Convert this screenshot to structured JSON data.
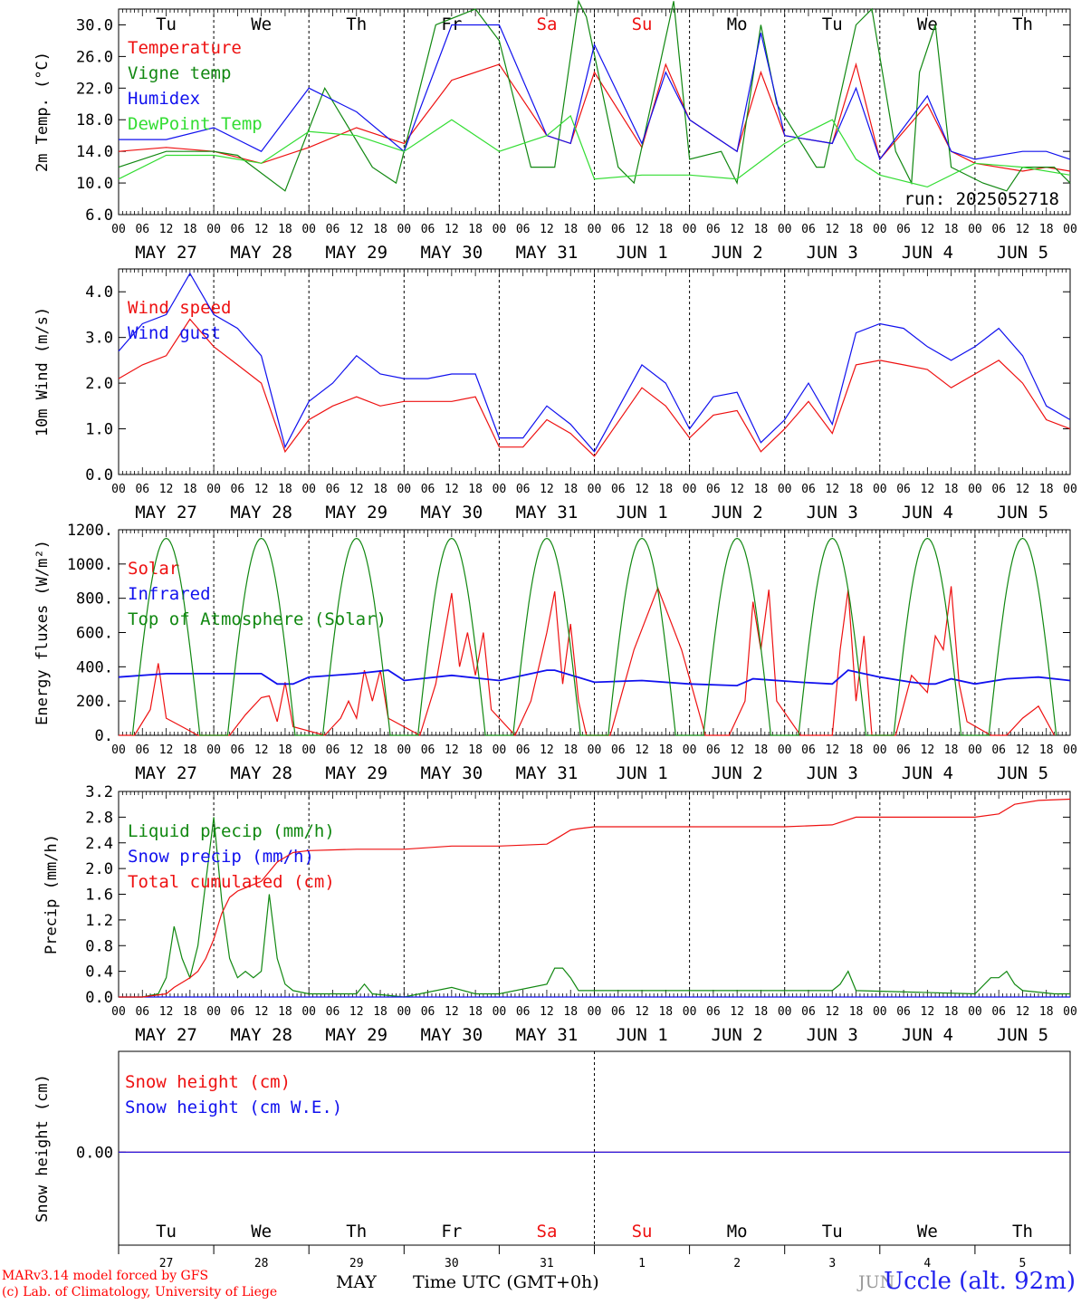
{
  "footer": {
    "model": "MARv3.14 model forced by GFS",
    "lab": "(c) Lab. of Climatology, University of Liege",
    "month_label": "MAY",
    "month_label_2": "JUN",
    "time_axis": "Time UTC (GMT+0h)",
    "station": "Uccle (alt. 92m)"
  },
  "colors": {
    "red": "#ee1111",
    "green": "#118811",
    "blue": "#1111ee",
    "lime": "#33dd33",
    "weekend": "#ee1111"
  },
  "days": [
    "Tu",
    "We",
    "Th",
    "Fr",
    "Sa",
    "Su",
    "Mo",
    "Tu",
    "We",
    "Th"
  ],
  "weekend_days": [
    "Sa",
    "Su"
  ],
  "day_numbers": [
    "27",
    "28",
    "29",
    "30",
    "31",
    "1",
    "2",
    "3",
    "4",
    "5"
  ],
  "date_labels": [
    "MAY 27",
    "MAY 28",
    "MAY 29",
    "MAY 30",
    "MAY 31",
    "JUN  1",
    "JUN  2",
    "JUN  3",
    "JUN  4",
    "JUN  5"
  ],
  "hour_ticks": [
    "00",
    "06",
    "12",
    "18"
  ],
  "hour_end": "00",
  "run_label": "run: 2025052718",
  "chart_data": [
    {
      "type": "line",
      "ylabel": "2m Temp. (°C)",
      "ylim": [
        6,
        32
      ],
      "yticks": [
        6,
        10,
        14,
        18,
        22,
        26,
        30
      ],
      "ytick_labels": [
        "6.0",
        "10.0",
        "14.0",
        "18.0",
        "22.0",
        "26.0",
        "30.0"
      ],
      "x_unit": "hours since 2025-05-27 00 UTC",
      "xlim": [
        0,
        240
      ],
      "series": [
        {
          "name": "Temperature",
          "color": "red",
          "x": [
            0,
            12,
            24,
            36,
            48,
            60,
            72,
            84,
            96,
            108,
            114,
            120,
            132,
            138,
            144,
            156,
            162,
            168,
            180,
            186,
            192,
            204,
            210,
            216,
            228,
            234,
            240
          ],
          "y": [
            14,
            14.5,
            14,
            12.5,
            14.5,
            17,
            15,
            23,
            25,
            16,
            15,
            24,
            14.5,
            25,
            18,
            14,
            24,
            16,
            15,
            25,
            13,
            20,
            14,
            12.5,
            11.5,
            12,
            11.5
          ]
        },
        {
          "name": "Vigne temp",
          "color": "green",
          "x": [
            0,
            12,
            24,
            30,
            42,
            52,
            64,
            70,
            80,
            90,
            96,
            104,
            110,
            116,
            118,
            126,
            130,
            140,
            144,
            152,
            156,
            162,
            166,
            176,
            178,
            186,
            190,
            196,
            200,
            202,
            206,
            210,
            218,
            224,
            228,
            236,
            240
          ],
          "y": [
            12,
            14,
            14,
            13.5,
            9,
            22,
            12,
            10,
            30,
            32,
            28,
            12,
            12,
            33,
            31,
            12,
            10,
            33,
            13,
            14,
            10,
            30,
            20,
            12,
            12,
            30,
            32,
            14,
            10,
            24,
            30,
            12,
            10,
            9,
            12,
            12,
            10
          ]
        },
        {
          "name": "Humidex",
          "color": "blue",
          "x": [
            0,
            12,
            24,
            30,
            36,
            48,
            60,
            72,
            84,
            96,
            108,
            114,
            120,
            132,
            138,
            144,
            156,
            162,
            168,
            180,
            186,
            192,
            204,
            210,
            216,
            228,
            234,
            240
          ],
          "y": [
            15.5,
            15.5,
            17,
            15.5,
            14,
            22,
            19,
            14,
            30,
            30,
            16,
            15,
            27.5,
            15,
            24,
            18,
            14,
            29,
            16,
            15,
            22,
            13,
            21,
            14,
            13,
            14,
            14,
            13
          ]
        },
        {
          "name": "DewPoint Temp",
          "color": "lime",
          "x": [
            0,
            12,
            24,
            36,
            48,
            60,
            72,
            84,
            96,
            108,
            114,
            120,
            132,
            144,
            156,
            168,
            180,
            186,
            192,
            204,
            216,
            228,
            240
          ],
          "y": [
            10.5,
            13.5,
            13.5,
            12.5,
            16.5,
            16,
            14,
            18,
            14,
            16,
            18.5,
            10.5,
            11,
            11,
            10.5,
            15,
            18,
            13,
            11,
            9.5,
            12.5,
            12,
            11
          ]
        }
      ]
    },
    {
      "type": "line",
      "ylabel": "10m Wind (m/s)",
      "ylim": [
        0,
        4.5
      ],
      "yticks": [
        0,
        1,
        2,
        3,
        4
      ],
      "ytick_labels": [
        "0.0",
        "1.0",
        "2.0",
        "3.0",
        "4.0"
      ],
      "xlim": [
        0,
        240
      ],
      "series": [
        {
          "name": "Wind speed",
          "color": "red",
          "x": [
            0,
            6,
            12,
            18,
            24,
            30,
            36,
            42,
            48,
            54,
            60,
            66,
            72,
            78,
            84,
            90,
            96,
            102,
            108,
            114,
            120,
            132,
            138,
            144,
            150,
            156,
            162,
            168,
            174,
            180,
            186,
            192,
            198,
            204,
            210,
            216,
            222,
            228,
            234,
            240
          ],
          "y": [
            2.1,
            2.4,
            2.6,
            3.4,
            2.8,
            2.4,
            2.0,
            0.5,
            1.2,
            1.5,
            1.7,
            1.5,
            1.6,
            1.6,
            1.6,
            1.7,
            0.6,
            0.6,
            1.2,
            0.9,
            0.4,
            1.9,
            1.5,
            0.8,
            1.3,
            1.4,
            0.5,
            1.0,
            1.6,
            0.9,
            2.4,
            2.5,
            2.4,
            2.3,
            1.9,
            2.2,
            2.5,
            2.0,
            1.2,
            1.0
          ]
        },
        {
          "name": "Wind gust",
          "color": "blue",
          "x": [
            0,
            6,
            12,
            18,
            24,
            30,
            36,
            42,
            48,
            54,
            60,
            66,
            72,
            78,
            84,
            90,
            96,
            102,
            108,
            114,
            120,
            132,
            138,
            144,
            150,
            156,
            162,
            168,
            174,
            180,
            186,
            192,
            198,
            204,
            210,
            216,
            222,
            228,
            234,
            240
          ],
          "y": [
            2.7,
            3.3,
            3.5,
            4.4,
            3.5,
            3.2,
            2.6,
            0.6,
            1.6,
            2.0,
            2.6,
            2.2,
            2.1,
            2.1,
            2.2,
            2.2,
            0.8,
            0.8,
            1.5,
            1.1,
            0.5,
            2.4,
            2.0,
            1.0,
            1.7,
            1.8,
            0.7,
            1.2,
            2.0,
            1.1,
            3.1,
            3.3,
            3.2,
            2.8,
            2.5,
            2.8,
            3.2,
            2.6,
            1.5,
            1.2
          ]
        }
      ]
    },
    {
      "type": "line",
      "ylabel": "Energy fluxes (W/m²)",
      "ylim": [
        0,
        1200
      ],
      "yticks": [
        0,
        200,
        400,
        600,
        800,
        1000,
        1200
      ],
      "ytick_labels": [
        "0.",
        "200.",
        "400.",
        "600.",
        "800.",
        "1000.",
        "1200."
      ],
      "xlim": [
        0,
        240
      ],
      "series": [
        {
          "name": "Solar",
          "color": "red",
          "x": [
            0,
            4,
            8,
            10,
            12,
            16,
            20,
            28,
            32,
            36,
            38,
            40,
            42,
            44,
            52,
            56,
            58,
            60,
            62,
            64,
            66,
            68,
            76,
            80,
            84,
            86,
            88,
            90,
            92,
            94,
            100,
            104,
            108,
            110,
            112,
            114,
            116,
            118,
            124,
            130,
            136,
            142,
            148,
            154,
            158,
            160,
            162,
            164,
            166,
            172,
            180,
            182,
            184,
            186,
            188,
            190,
            196,
            200,
            204,
            206,
            208,
            210,
            212,
            214,
            220,
            224,
            228,
            232,
            236
          ],
          "y": [
            0,
            0,
            150,
            420,
            100,
            50,
            0,
            0,
            120,
            220,
            230,
            80,
            310,
            50,
            0,
            100,
            200,
            100,
            380,
            200,
            380,
            100,
            0,
            300,
            830,
            400,
            600,
            350,
            600,
            150,
            0,
            200,
            600,
            840,
            300,
            650,
            200,
            0,
            0,
            500,
            860,
            500,
            0,
            0,
            200,
            780,
            500,
            850,
            200,
            0,
            0,
            500,
            850,
            200,
            580,
            0,
            0,
            350,
            250,
            580,
            500,
            870,
            300,
            80,
            0,
            0,
            100,
            170,
            0
          ]
        },
        {
          "name": "Infrared",
          "color": "blue",
          "x": [
            0,
            12,
            24,
            36,
            40,
            44,
            48,
            60,
            68,
            72,
            84,
            96,
            108,
            110,
            120,
            132,
            144,
            156,
            160,
            172,
            180,
            184,
            192,
            200,
            204,
            206,
            210,
            216,
            224,
            232,
            240
          ],
          "y": [
            340,
            360,
            360,
            360,
            300,
            300,
            340,
            360,
            380,
            320,
            350,
            320,
            380,
            380,
            310,
            320,
            300,
            290,
            330,
            310,
            300,
            380,
            340,
            310,
            300,
            300,
            330,
            300,
            330,
            340,
            320
          ]
        },
        {
          "name": "Top of Atmosphere (Solar)",
          "color": "green",
          "peak": 1150,
          "sunrise_hour": 3.5,
          "sunset_hour": 20.5,
          "peak_hour": 12
        }
      ]
    },
    {
      "type": "line",
      "ylabel": "Precip (mm/h)",
      "ylim": [
        0,
        3.2
      ],
      "yticks": [
        0,
        0.4,
        0.8,
        1.2,
        1.6,
        2.0,
        2.4,
        2.8,
        3.2
      ],
      "ytick_labels": [
        "0.0",
        "0.4",
        "0.8",
        "1.2",
        "1.6",
        "2.0",
        "2.4",
        "2.8",
        "3.2"
      ],
      "xlim": [
        0,
        240
      ],
      "series": [
        {
          "name": "Liquid precip (mm/h)",
          "color": "green",
          "x": [
            0,
            6,
            10,
            12,
            14,
            16,
            18,
            20,
            24,
            26,
            28,
            30,
            32,
            34,
            36,
            38,
            40,
            42,
            44,
            48,
            60,
            62,
            64,
            72,
            84,
            90,
            96,
            108,
            110,
            112,
            114,
            116,
            120,
            180,
            182,
            184,
            186,
            216,
            220,
            222,
            224,
            226,
            228,
            236,
            240
          ],
          "y": [
            0,
            0,
            0.05,
            0.3,
            1.1,
            0.6,
            0.3,
            0.8,
            2.8,
            1.5,
            0.6,
            0.3,
            0.4,
            0.3,
            0.4,
            1.6,
            0.6,
            0.2,
            0.1,
            0.05,
            0.05,
            0.2,
            0.05,
            0,
            0.15,
            0.05,
            0.05,
            0.2,
            0.45,
            0.45,
            0.3,
            0.1,
            0.1,
            0.1,
            0.2,
            0.4,
            0.1,
            0.05,
            0.3,
            0.3,
            0.4,
            0.2,
            0.1,
            0.05,
            0.05
          ]
        },
        {
          "name": "Snow precip (mm/h)",
          "color": "blue",
          "x": [
            0,
            240
          ],
          "y": [
            0,
            0
          ]
        },
        {
          "name": "Total cumulated (cm)",
          "color": "red",
          "x": [
            0,
            6,
            12,
            14,
            18,
            20,
            22,
            24,
            26,
            28,
            30,
            32,
            36,
            40,
            44,
            48,
            60,
            72,
            84,
            96,
            108,
            110,
            114,
            116,
            120,
            132,
            144,
            168,
            180,
            186,
            192,
            204,
            216,
            222,
            226,
            232,
            240
          ],
          "y": [
            0,
            0,
            0.05,
            0.15,
            0.3,
            0.4,
            0.6,
            0.9,
            1.3,
            1.55,
            1.65,
            1.7,
            1.8,
            2.1,
            2.25,
            2.28,
            2.3,
            2.3,
            2.35,
            2.35,
            2.38,
            2.45,
            2.6,
            2.62,
            2.65,
            2.65,
            2.65,
            2.65,
            2.68,
            2.8,
            2.8,
            2.8,
            2.8,
            2.85,
            3.0,
            3.06,
            3.08
          ]
        }
      ]
    },
    {
      "type": "line",
      "ylabel": "Snow height (cm)",
      "ytick_labels": [
        "0.00"
      ],
      "xlim": [
        0,
        240
      ],
      "series": [
        {
          "name": "Snow height (cm)",
          "color": "red",
          "x": [
            0,
            240
          ],
          "y": [
            0,
            0
          ]
        },
        {
          "name": "Snow height (cm W.E.)",
          "color": "blue",
          "x": [
            0,
            240
          ],
          "y": [
            0,
            0
          ]
        }
      ]
    }
  ]
}
